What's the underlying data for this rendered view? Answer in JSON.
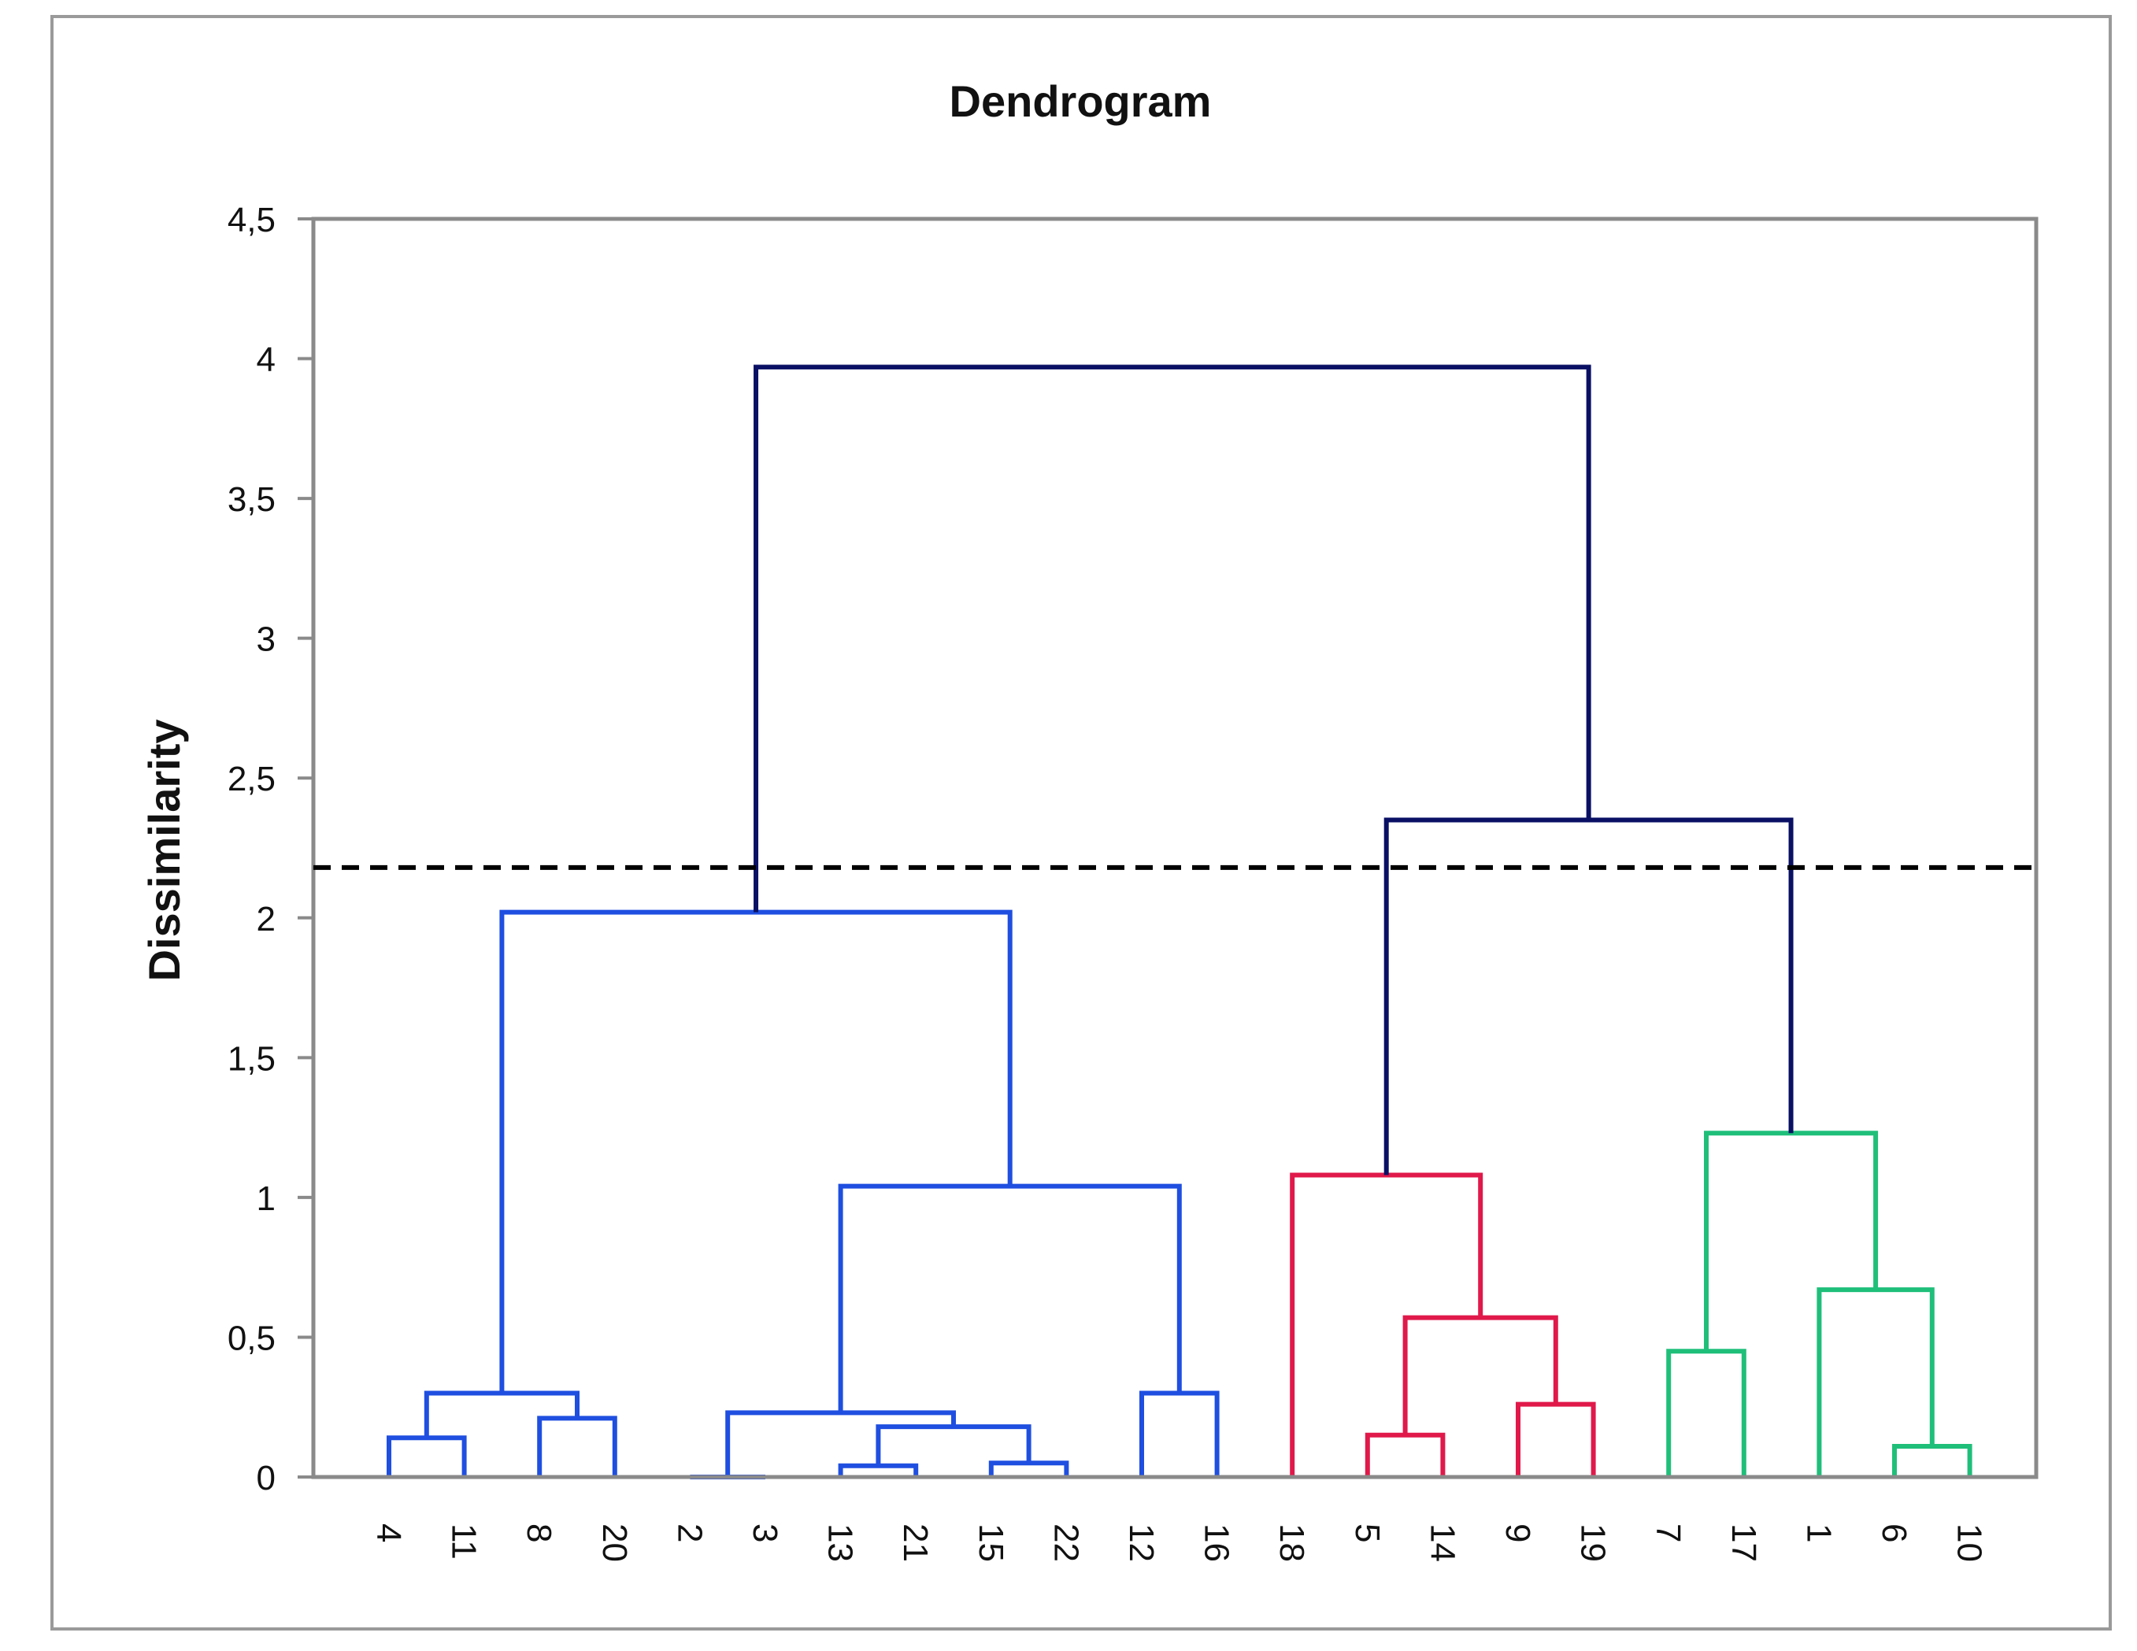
{
  "chart_data": {
    "type": "dendrogram",
    "title": "Dendrogram",
    "xlabel": "",
    "ylabel": "Dissimilarity",
    "ylim": [
      0,
      4.5
    ],
    "y_ticks": [
      "0",
      "0,5",
      "1",
      "1,5",
      "2",
      "2,5",
      "3",
      "3,5",
      "4",
      "4,5"
    ],
    "y_tick_values": [
      0,
      0.5,
      1,
      1.5,
      2,
      2.5,
      3,
      3.5,
      4,
      4.5
    ],
    "grid": false,
    "cut_line": {
      "value": 2.18,
      "style": "dashed",
      "color": "#000000"
    },
    "leaves": [
      "4",
      "11",
      "8",
      "20",
      "2",
      "3",
      "13",
      "21",
      "15",
      "22",
      "12",
      "16",
      "18",
      "5",
      "14",
      "9",
      "19",
      "7",
      "17",
      "1",
      "6",
      "10"
    ],
    "colors": {
      "blue": "#1F4FE0",
      "red": "#E0194A",
      "green": "#1FBF7A",
      "navy": "#0A1064"
    },
    "merges": [
      {
        "left": "L:4",
        "right": "L:11",
        "height": 0.14,
        "color": "blue"
      },
      {
        "left": "L:8",
        "right": "L:20",
        "height": 0.21,
        "color": "blue"
      },
      {
        "left": "M:0",
        "right": "M:1",
        "height": 0.3,
        "color": "blue"
      },
      {
        "left": "L:2",
        "right": "L:3",
        "height": 0.0,
        "color": "blue"
      },
      {
        "left": "L:13",
        "right": "L:21",
        "height": 0.04,
        "color": "blue"
      },
      {
        "left": "L:15",
        "right": "L:22",
        "height": 0.05,
        "color": "blue"
      },
      {
        "left": "M:4",
        "right": "M:5",
        "height": 0.18,
        "color": "blue"
      },
      {
        "left": "M:3",
        "right": "M:6",
        "height": 0.23,
        "color": "blue"
      },
      {
        "left": "L:12",
        "right": "L:16",
        "height": 0.3,
        "color": "blue"
      },
      {
        "left": "M:7",
        "right": "M:8",
        "height": 1.04,
        "color": "blue"
      },
      {
        "left": "M:2",
        "right": "M:9",
        "height": 2.02,
        "color": "blue"
      },
      {
        "left": "L:5",
        "right": "L:14",
        "height": 0.15,
        "color": "red"
      },
      {
        "left": "L:9",
        "right": "L:19",
        "height": 0.26,
        "color": "red"
      },
      {
        "left": "M:11",
        "right": "M:12",
        "height": 0.57,
        "color": "red"
      },
      {
        "left": "L:18",
        "right": "M:13",
        "height": 1.08,
        "color": "red"
      },
      {
        "left": "L:7",
        "right": "L:17",
        "height": 0.45,
        "color": "green"
      },
      {
        "left": "L:6",
        "right": "L:10",
        "height": 0.11,
        "color": "green"
      },
      {
        "left": "L:1",
        "right": "M:16",
        "height": 0.67,
        "color": "green"
      },
      {
        "left": "M:15",
        "right": "M:17",
        "height": 1.23,
        "color": "green"
      },
      {
        "left": "M:14",
        "right": "M:18",
        "height": 2.35,
        "color": "navy"
      },
      {
        "left": "M:10",
        "right": "M:19",
        "height": 3.97,
        "color": "navy"
      }
    ]
  }
}
